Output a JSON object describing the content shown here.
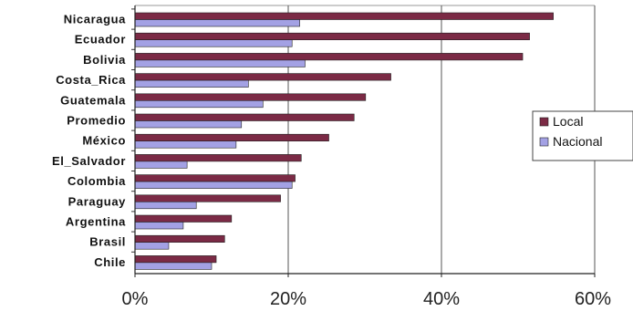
{
  "chart_data": {
    "type": "bar",
    "orientation": "horizontal",
    "title": "",
    "xlabel": "",
    "ylabel": "",
    "categories": [
      "Nicaragua",
      "Ecuador",
      "Bolivia",
      "Costa_Rica",
      "Guatemala",
      "Promedio",
      "México",
      "El_Salvador",
      "Colombia",
      "Paraguay",
      "Argentina",
      "Brasil",
      "Chile"
    ],
    "series": [
      {
        "name": "Local",
        "color": "#7b2a45",
        "values": [
          54.6,
          51.5,
          50.6,
          33.4,
          30.1,
          28.6,
          25.3,
          21.7,
          20.9,
          19.0,
          12.6,
          11.7,
          10.6
        ]
      },
      {
        "name": "Nacional",
        "color": "#a3a1e4",
        "values": [
          21.5,
          20.5,
          22.2,
          14.8,
          16.7,
          13.9,
          13.2,
          6.8,
          20.5,
          8.0,
          6.3,
          4.4,
          10.0
        ]
      }
    ],
    "xlim": [
      0,
      60
    ],
    "xticks": [
      0,
      20,
      40,
      60
    ],
    "xtick_labels": [
      "0%",
      "20%",
      "40%",
      "60%"
    ],
    "grid": "vertical",
    "legend_position": "right"
  }
}
